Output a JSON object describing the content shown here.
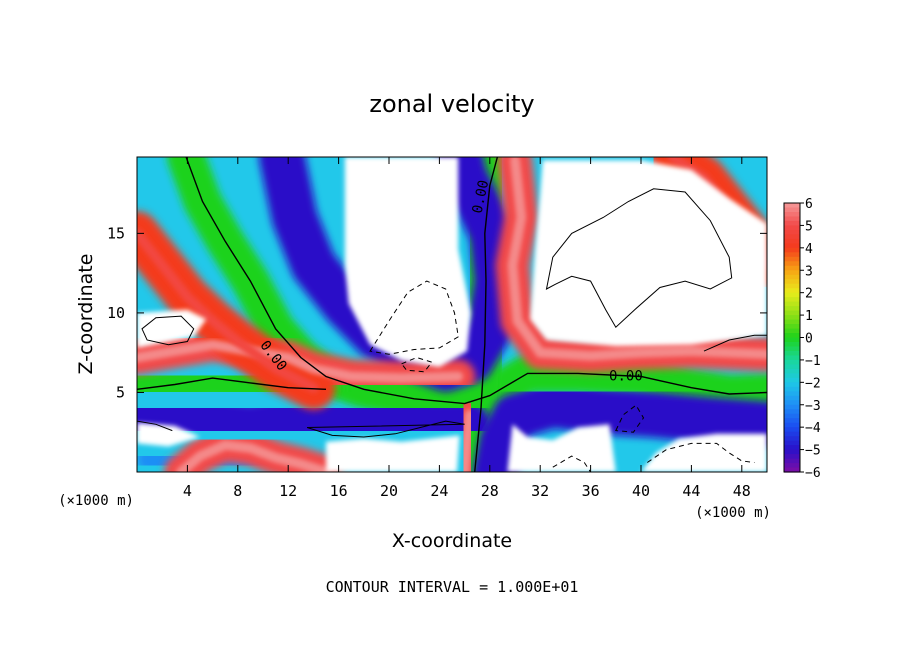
{
  "chart_data": {
    "type": "heatmap",
    "title": "zonal velocity",
    "xlabel": "X-coordinate",
    "ylabel": "Z-coordinate",
    "x_unit_left": "(×1000 m)",
    "x_unit_right": "(×1000 m)",
    "footer": "CONTOUR INTERVAL = 1.000E+01",
    "xlim": [
      0,
      50
    ],
    "ylim": [
      0,
      19.8
    ],
    "x_ticks": [
      4,
      8,
      12,
      16,
      20,
      24,
      28,
      32,
      36,
      40,
      44,
      48
    ],
    "y_ticks": [
      5,
      10,
      15
    ],
    "colorbar": {
      "range": [
        -6,
        6
      ],
      "ticks": [
        6,
        5,
        4,
        3,
        2,
        1,
        0,
        -1,
        -2,
        -3,
        -4,
        -5,
        -6
      ],
      "tick_labels": [
        "6",
        "5",
        "4",
        "3",
        "2",
        "1",
        "0",
        "−1",
        "−2",
        "−3",
        "−4",
        "−5",
        "−6"
      ]
    },
    "contour_labels": [
      {
        "text": "0.00",
        "x": 10.8,
        "z": 7.3,
        "angle": 52
      },
      {
        "text": "0.00",
        "x": 27.3,
        "z": 17.3,
        "angle": -78
      },
      {
        "text": "0.00",
        "x": 38.8,
        "z": 6.0,
        "angle": 0
      }
    ],
    "features": [
      {
        "kind": "band",
        "value": 0,
        "points": [
          [
            3.9,
            19.8
          ],
          [
            5.2,
            17
          ],
          [
            7,
            14.5
          ],
          [
            9,
            12
          ],
          [
            11,
            9
          ],
          [
            13,
            7.2
          ],
          [
            15,
            6
          ],
          [
            18,
            5.2
          ],
          [
            22,
            4.6
          ],
          [
            26,
            4.3
          ],
          [
            28,
            4.8
          ],
          [
            31,
            6.2
          ],
          [
            35,
            6.2
          ],
          [
            40,
            6.0
          ],
          [
            44,
            5.3
          ],
          [
            47,
            4.9
          ],
          [
            50,
            5.0
          ]
        ]
      },
      {
        "kind": "band",
        "value": 0,
        "points": [
          [
            0,
            5.2
          ],
          [
            3,
            5.5
          ],
          [
            6,
            5.9
          ],
          [
            9,
            5.6
          ],
          [
            12,
            5.3
          ],
          [
            15,
            5.2
          ]
        ]
      },
      {
        "kind": "band",
        "value": 0,
        "points": [
          [
            26.8,
            0
          ],
          [
            27.3,
            4
          ],
          [
            27.6,
            8
          ],
          [
            27.7,
            12
          ],
          [
            27.6,
            15
          ],
          [
            28.0,
            18
          ],
          [
            28.6,
            19.8
          ]
        ]
      },
      {
        "kind": "band",
        "value": -5,
        "points": [
          [
            11.5,
            19.8
          ],
          [
            12.5,
            16
          ],
          [
            14,
            13
          ],
          [
            16.5,
            10.5
          ],
          [
            19,
            8.5
          ],
          [
            22,
            7.2
          ],
          [
            24.5,
            6.5
          ],
          [
            26.5,
            7
          ],
          [
            28,
            9
          ],
          [
            28.6,
            12
          ],
          [
            28.2,
            15
          ],
          [
            27.0,
            17
          ],
          [
            26,
            18.5
          ],
          [
            25.6,
            19.8
          ]
        ]
      },
      {
        "kind": "band",
        "value": -5,
        "points": [
          [
            0,
            3.8
          ],
          [
            5,
            3.2
          ],
          [
            9,
            2.8
          ],
          [
            12,
            3.2
          ],
          [
            15,
            3.5
          ],
          [
            20,
            3.2
          ],
          [
            24,
            3.0
          ],
          [
            26.2,
            3.0
          ]
        ]
      },
      {
        "kind": "band",
        "value": -5,
        "points": [
          [
            28.5,
            0
          ],
          [
            29,
            2
          ],
          [
            30,
            3.5
          ],
          [
            33,
            4.2
          ],
          [
            37,
            3.8
          ],
          [
            41,
            3.6
          ],
          [
            45,
            3.3
          ],
          [
            50,
            3.0
          ]
        ]
      },
      {
        "kind": "band",
        "value": -3,
        "points": [
          [
            1,
            0.8
          ],
          [
            4,
            0.6
          ],
          [
            8,
            0.5
          ],
          [
            11,
            0.9
          ]
        ]
      },
      {
        "kind": "band",
        "value": 5,
        "points": [
          [
            0,
            7.2
          ],
          [
            3,
            7.6
          ],
          [
            6,
            8.0
          ],
          [
            9,
            7.6
          ],
          [
            12,
            7.2
          ],
          [
            14,
            6.5
          ],
          [
            17,
            6.0
          ],
          [
            21,
            5.9
          ],
          [
            25.5,
            6.0
          ]
        ]
      },
      {
        "kind": "band",
        "value": 4,
        "points": [
          [
            0,
            15
          ],
          [
            2,
            13
          ],
          [
            4,
            11
          ],
          [
            6,
            9.5
          ],
          [
            8,
            8.2
          ],
          [
            11,
            6.5
          ],
          [
            14,
            5.3
          ]
        ]
      },
      {
        "kind": "band",
        "value": 5,
        "points": [
          [
            30,
            19.6
          ],
          [
            30.5,
            16
          ],
          [
            29.8,
            13
          ],
          [
            30.2,
            9.5
          ],
          [
            32,
            7.5
          ],
          [
            36,
            7.3
          ],
          [
            40,
            7.5
          ],
          [
            44,
            7.6
          ],
          [
            50,
            7.4
          ]
        ]
      },
      {
        "kind": "band",
        "value": 4,
        "points": [
          [
            42.5,
            19.8
          ],
          [
            45,
            18.5
          ],
          [
            47,
            16.5
          ],
          [
            49,
            14.5
          ],
          [
            50,
            13
          ]
        ]
      },
      {
        "kind": "band",
        "value": 5,
        "points": [
          [
            3.5,
            0
          ],
          [
            5,
            1
          ],
          [
            7,
            1.7
          ],
          [
            9,
            1.5
          ],
          [
            11,
            0.9
          ],
          [
            13,
            0.5
          ],
          [
            15,
            0
          ]
        ]
      },
      {
        "kind": "band",
        "value": 5,
        "points": [
          [
            26,
            0
          ],
          [
            26.2,
            2
          ],
          [
            26.4,
            3.6
          ]
        ]
      }
    ],
    "zero_contours": [
      {
        "closed": true,
        "points": [
          [
            32.5,
            11.5
          ],
          [
            33,
            13.5
          ],
          [
            34.5,
            15
          ],
          [
            37,
            16
          ],
          [
            39,
            17
          ],
          [
            41,
            17.8
          ],
          [
            43.5,
            17.6
          ],
          [
            45.5,
            15.8
          ],
          [
            47,
            13.5
          ],
          [
            47.2,
            12.2
          ],
          [
            45.5,
            11.5
          ],
          [
            43.5,
            12
          ],
          [
            41.5,
            11.6
          ],
          [
            39.5,
            10.2
          ],
          [
            38,
            9.1
          ],
          [
            37.2,
            10.2
          ],
          [
            36,
            12
          ],
          [
            34.5,
            12.3
          ],
          [
            33.2,
            11.8
          ]
        ]
      },
      {
        "closed": true,
        "points": [
          [
            0.4,
            9.0
          ],
          [
            1.5,
            9.7
          ],
          [
            3.5,
            9.8
          ],
          [
            4.5,
            9.0
          ],
          [
            4.0,
            8.2
          ],
          [
            2.5,
            8.0
          ],
          [
            0.8,
            8.3
          ]
        ]
      },
      {
        "closed": true,
        "points": [
          [
            13.5,
            2.8
          ],
          [
            15.5,
            2.3
          ],
          [
            18,
            2.2
          ],
          [
            20.5,
            2.4
          ],
          [
            23,
            2.9
          ],
          [
            24.5,
            3.2
          ],
          [
            26,
            3.0
          ]
        ]
      },
      {
        "closed": false,
        "points": [
          [
            45,
            7.6
          ],
          [
            47,
            8.3
          ],
          [
            49,
            8.6
          ],
          [
            50,
            8.6
          ]
        ]
      },
      {
        "closed": false,
        "points": [
          [
            0,
            3.2
          ],
          [
            1.5,
            3.0
          ],
          [
            2.8,
            2.6
          ]
        ]
      }
    ],
    "negative_contours": [
      {
        "closed": true,
        "points": [
          [
            18.5,
            7.6
          ],
          [
            20,
            9.5
          ],
          [
            21.5,
            11.3
          ],
          [
            23,
            12
          ],
          [
            24.5,
            11.5
          ],
          [
            25.2,
            10
          ],
          [
            25.5,
            8.5
          ],
          [
            24,
            7.8
          ],
          [
            22,
            7.7
          ],
          [
            20,
            7.4
          ]
        ]
      },
      {
        "closed": true,
        "points": [
          [
            21,
            6.8
          ],
          [
            22.2,
            7.2
          ],
          [
            23.4,
            6.9
          ],
          [
            22.8,
            6.3
          ],
          [
            21.4,
            6.4
          ]
        ]
      },
      {
        "closed": true,
        "points": [
          [
            38.0,
            2.6
          ],
          [
            38.6,
            3.6
          ],
          [
            39.6,
            4.2
          ],
          [
            40.2,
            3.4
          ],
          [
            39.4,
            2.5
          ]
        ]
      },
      {
        "closed": false,
        "points": [
          [
            40.5,
            0.6
          ],
          [
            42,
            1.4
          ],
          [
            44,
            1.8
          ],
          [
            46,
            1.8
          ],
          [
            47,
            1.2
          ],
          [
            48,
            0.7
          ],
          [
            49,
            0.6
          ]
        ]
      },
      {
        "closed": false,
        "points": [
          [
            33,
            0.3
          ],
          [
            34.5,
            1.0
          ],
          [
            35.5,
            0.6
          ],
          [
            36,
            0.0
          ]
        ]
      }
    ],
    "blank_regions": [
      {
        "note": "white (|u| beyond colour range)",
        "points": [
          [
            16.5,
            19.8
          ],
          [
            25.5,
            19.8
          ],
          [
            25.5,
            14
          ],
          [
            26.5,
            10
          ],
          [
            26.2,
            7.6
          ],
          [
            24,
            6.6
          ],
          [
            21,
            7.0
          ],
          [
            18.5,
            8.0
          ],
          [
            16.8,
            10.6
          ],
          [
            16.5,
            13
          ]
        ]
      },
      {
        "note": "white",
        "points": [
          [
            32.2,
            19.6
          ],
          [
            40,
            19.6
          ],
          [
            44,
            19.0
          ],
          [
            47,
            17.2
          ],
          [
            50,
            15.6
          ],
          [
            50,
            8.6
          ],
          [
            44,
            8.0
          ],
          [
            38,
            7.9
          ],
          [
            32.5,
            8.3
          ],
          [
            31.2,
            9.6
          ],
          [
            31.6,
            14
          ],
          [
            32.0,
            17.5
          ]
        ]
      },
      {
        "note": "white",
        "points": [
          [
            0,
            7.8
          ],
          [
            4.5,
            8.5
          ],
          [
            5.5,
            9.6
          ],
          [
            4,
            10.2
          ],
          [
            0,
            10.0
          ]
        ]
      },
      {
        "note": "white",
        "points": [
          [
            0,
            3.1
          ],
          [
            3,
            2.9
          ],
          [
            5,
            2.2
          ],
          [
            2.5,
            1.6
          ],
          [
            0,
            1.8
          ]
        ]
      },
      {
        "note": "white",
        "points": [
          [
            15,
            0
          ],
          [
            15,
            1.9
          ],
          [
            18,
            2.1
          ],
          [
            21,
            1.9
          ],
          [
            25.6,
            2.3
          ],
          [
            25.4,
            0
          ]
        ]
      },
      {
        "note": "white",
        "points": [
          [
            29.8,
            3.0
          ],
          [
            31,
            2.2
          ],
          [
            33,
            2.0
          ],
          [
            35,
            2.8
          ],
          [
            37.5,
            3.0
          ],
          [
            38,
            0
          ],
          [
            29.4,
            0
          ]
        ]
      },
      {
        "note": "white",
        "points": [
          [
            40,
            0
          ],
          [
            41.2,
            1.2
          ],
          [
            43,
            2.1
          ],
          [
            46,
            2.4
          ],
          [
            50,
            2.4
          ],
          [
            50,
            0
          ]
        ]
      }
    ]
  }
}
